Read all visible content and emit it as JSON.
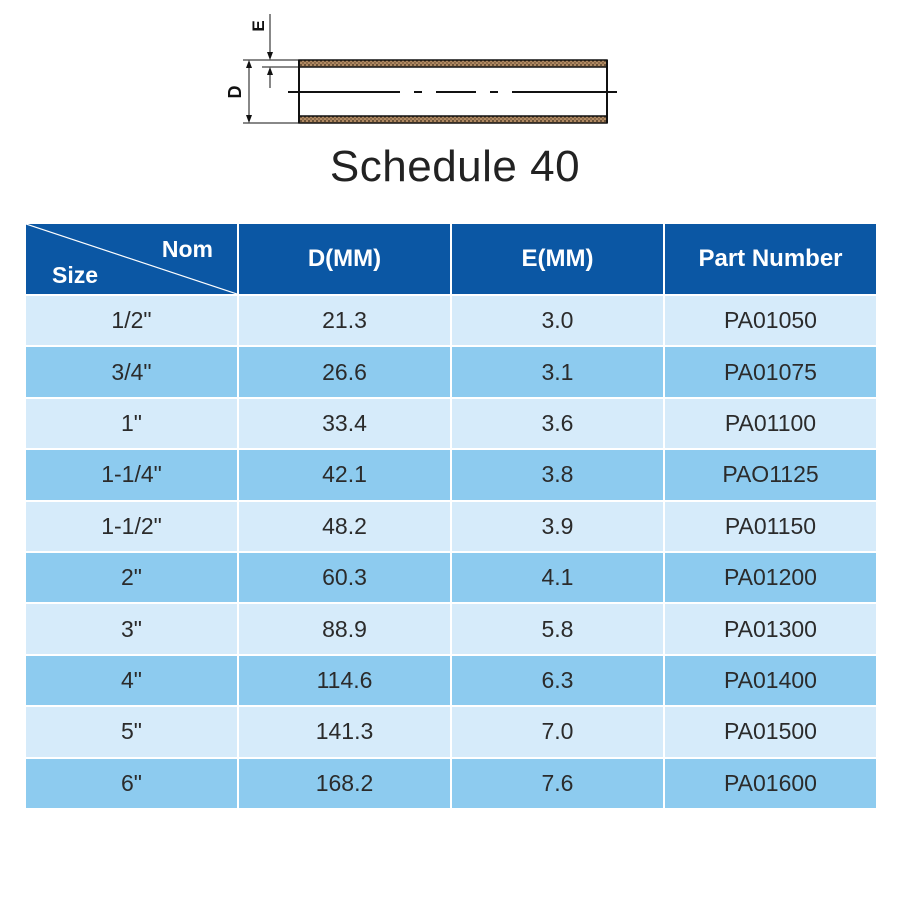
{
  "diagram": {
    "label_d": "D",
    "label_e": "E"
  },
  "title": "Schedule 40",
  "table": {
    "header": {
      "corner_top": "Nom",
      "corner_bottom": "Size",
      "columns": [
        "D(MM)",
        "E(MM)",
        "Part Number"
      ]
    },
    "rows": [
      {
        "size": "1/2\"",
        "d": "21.3",
        "e": "3.0",
        "part": "PA01050"
      },
      {
        "size": "3/4\"",
        "d": "26.6",
        "e": "3.1",
        "part": "PA01075"
      },
      {
        "size": "1\"",
        "d": "33.4",
        "e": "3.6",
        "part": "PA01100"
      },
      {
        "size": "1-1/4\"",
        "d": "42.1",
        "e": "3.8",
        "part": "PAO1125"
      },
      {
        "size": "1-1/2\"",
        "d": "48.2",
        "e": "3.9",
        "part": "PA01150"
      },
      {
        "size": "2\"",
        "d": "60.3",
        "e": "4.1",
        "part": "PA01200"
      },
      {
        "size": "3\"",
        "d": "88.9",
        "e": "5.8",
        "part": "PA01300"
      },
      {
        "size": "4\"",
        "d": "114.6",
        "e": "6.3",
        "part": "PA01400"
      },
      {
        "size": "5\"",
        "d": "141.3",
        "e": "7.0",
        "part": "PA01500"
      },
      {
        "size": "6\"",
        "d": "168.2",
        "e": "7.6",
        "part": "PA01600"
      }
    ]
  },
  "colors": {
    "header_bg": "#0b57a4",
    "row_light": "#d6ebfa",
    "row_dark": "#8dcbef",
    "pipe_wall": "#7a5a3a"
  }
}
